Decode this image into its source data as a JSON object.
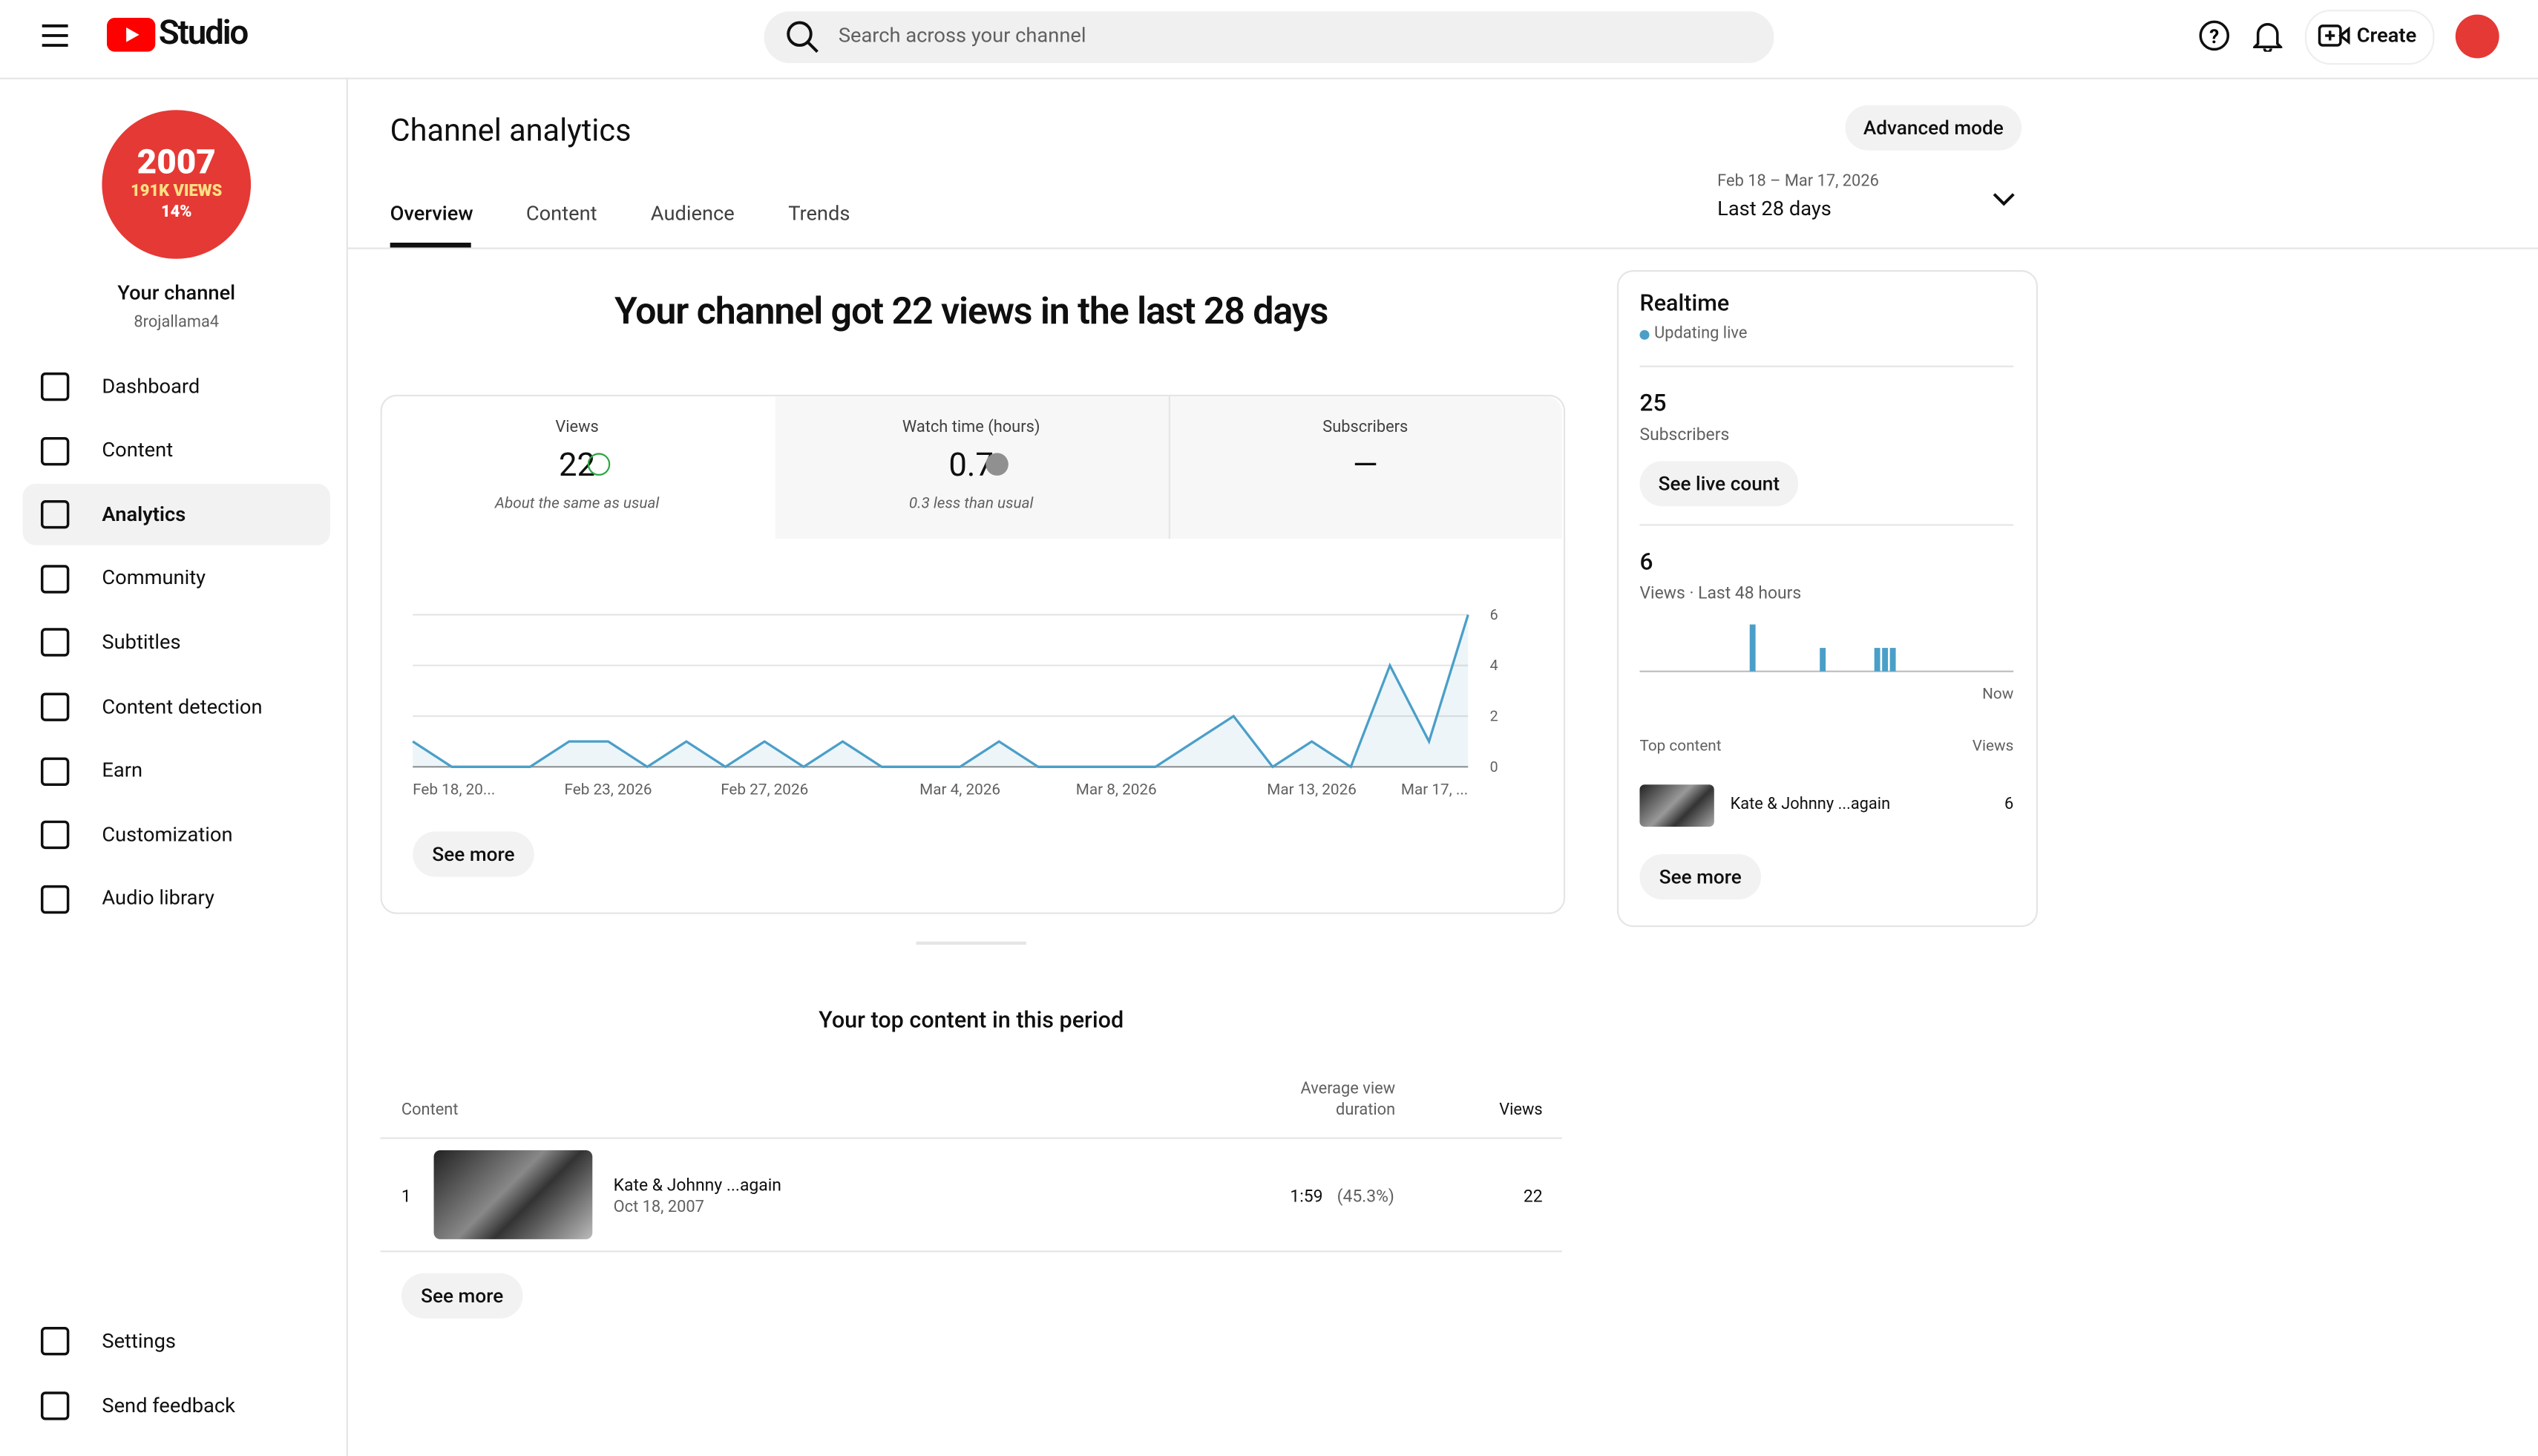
{
  "header": {
    "logo": "Studio",
    "search_placeholder": "Search across your channel",
    "create": "Create"
  },
  "sidebar": {
    "avatar": {
      "year": "2007",
      "views": "191K VIEWS",
      "pct": "14%"
    },
    "channel_name": "Your channel",
    "handle": "8rojallama4",
    "nav": [
      "Dashboard",
      "Content",
      "Analytics",
      "Community",
      "Subtitles",
      "Content detection",
      "Earn",
      "Customization",
      "Audio library"
    ],
    "active": 2,
    "bottom": [
      "Settings",
      "Send feedback"
    ]
  },
  "page": {
    "title": "Channel analytics",
    "advanced_mode": "Advanced mode",
    "tabs": [
      "Overview",
      "Content",
      "Audience",
      "Trends"
    ],
    "active_tab": 0,
    "date_range": "Feb 18 – Mar 17, 2026",
    "period": "Last 28 days"
  },
  "overview": {
    "headline": "Your channel got 22 views in the last 28 days",
    "metrics": [
      {
        "label": "Views",
        "value": "22",
        "note": "About the same as usual"
      },
      {
        "label": "Watch time (hours)",
        "value": "0.7",
        "note": "0.3 less than usual"
      },
      {
        "label": "Subscribers",
        "value": "—"
      }
    ],
    "chart": {
      "type": "line",
      "color": "#4a9fc8",
      "categories": [
        "Feb 18, 20...",
        null,
        null,
        null,
        null,
        "Feb 23, 2026",
        null,
        null,
        null,
        "Feb 27, 2026",
        null,
        null,
        null,
        null,
        "Mar 4, 2026",
        null,
        null,
        null,
        "Mar 8, 2026",
        null,
        null,
        null,
        null,
        "Mar 13, 2026",
        null,
        null,
        null,
        "Mar 17, ..."
      ],
      "values": [
        1,
        0,
        0,
        0,
        1,
        1,
        0,
        1,
        0,
        1,
        0,
        1,
        0,
        0,
        0,
        1,
        0,
        0,
        0,
        0,
        1,
        2,
        0,
        1,
        0,
        4,
        1,
        6
      ],
      "ylim": [
        0,
        6
      ],
      "yticks": [
        0,
        2,
        4,
        6
      ],
      "grid": true
    },
    "see_more": "See more"
  },
  "realtime": {
    "title": "Realtime",
    "status": "Updating live",
    "subscribers": "25",
    "subscribers_label": "Subscribers",
    "see_live": "See live count",
    "views": "6",
    "views_label": "Views · Last 48 hours",
    "chart": {
      "type": "bar",
      "color": "#4a9fc8",
      "x_label": "Now",
      "ylim": [
        0,
        2
      ],
      "values": [
        0,
        0,
        0,
        0,
        0,
        0,
        0,
        0,
        0,
        0,
        0,
        0,
        0,
        0,
        2,
        0,
        0,
        0,
        0,
        0,
        0,
        0,
        0,
        1,
        0,
        0,
        0,
        0,
        0,
        0,
        1,
        1,
        1,
        0,
        0,
        0,
        0,
        0,
        0,
        0,
        0,
        0,
        0,
        0,
        0,
        0,
        0,
        0
      ]
    },
    "top_content_label": "Top content",
    "views_col": "Views",
    "top_item": {
      "title": "Kate & Johnny ...again",
      "views": "6"
    },
    "see_more": "See more"
  },
  "top_content": {
    "title": "Your top content in this period",
    "columns": [
      "Content",
      "Average view duration",
      "Views"
    ],
    "rows": [
      {
        "rank": "1",
        "title": "Kate & Johnny ...again",
        "date": "Oct 18, 2007",
        "duration": "1:59",
        "pct": "(45.3%)",
        "views": "22"
      }
    ],
    "see_more": "See more"
  }
}
